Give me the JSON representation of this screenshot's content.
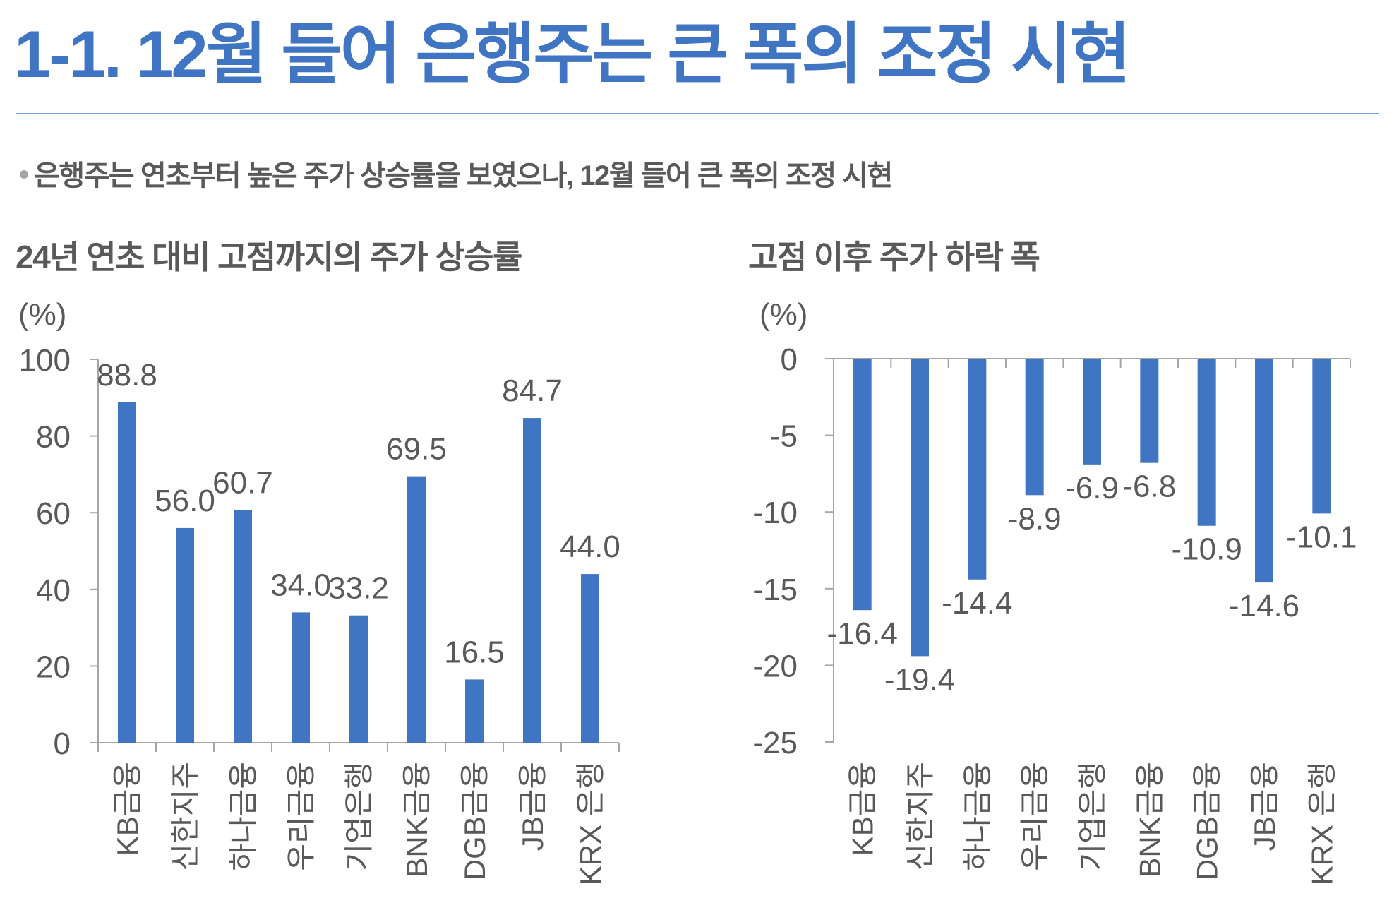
{
  "header": {
    "title": "1-1. 12월 들어 은행주는 큰 폭의 조정 시현",
    "accent_color": "#4075C4"
  },
  "summary": {
    "bullet": "은행주는 연초부터 높은 주가 상승률을 보였으나, 12월 들어 큰 폭의 조정 시현"
  },
  "chart_data": [
    {
      "type": "bar",
      "title": "24년 연초 대비 고점까지의 주가 상승률",
      "unit_label": "(%)",
      "xlabel": "",
      "ylabel": "(%)",
      "categories": [
        "KB금융",
        "신한지주",
        "하나금융",
        "우리금융",
        "기업은행",
        "BNK금융",
        "DGB금융",
        "JB금융",
        "KRX 은행"
      ],
      "values": [
        88.8,
        56.0,
        60.7,
        34.0,
        33.2,
        69.5,
        16.5,
        84.7,
        44.0
      ],
      "value_labels": [
        "88.8",
        "56.0",
        "60.7",
        "34.0",
        "33.2",
        "69.5",
        "16.5",
        "84.7",
        "44.0"
      ],
      "ylim": [
        0,
        100
      ],
      "yticks": [
        0,
        20,
        40,
        60,
        80,
        100
      ],
      "ytick_labels": [
        "0",
        "20",
        "40",
        "60",
        "80",
        "100"
      ],
      "bar_color": "#4075C4",
      "grid": false,
      "legend": "none"
    },
    {
      "type": "bar",
      "title": "고점 이후 주가 하락 폭",
      "unit_label": "(%)",
      "xlabel": "",
      "ylabel": "(%)",
      "categories": [
        "KB금융",
        "신한지주",
        "하나금융",
        "우리금융",
        "기업은행",
        "BNK금융",
        "DGB금융",
        "JB금융",
        "KRX 은행"
      ],
      "values": [
        -16.4,
        -19.4,
        -14.4,
        -8.9,
        -6.9,
        -6.8,
        -10.9,
        -14.6,
        -10.1
      ],
      "value_labels": [
        "-16.4",
        "-19.4",
        "-14.4",
        "-8.9",
        "-6.9",
        "-6.8",
        "-10.9",
        "-14.6",
        "-10.1"
      ],
      "ylim": [
        -25,
        0
      ],
      "yticks": [
        0,
        -5,
        -10,
        -15,
        -20,
        -25
      ],
      "ytick_labels": [
        "0",
        "-5",
        "-10",
        "-15",
        "-20",
        "-25"
      ],
      "bar_color": "#4075C4",
      "grid": false,
      "legend": "none"
    }
  ]
}
